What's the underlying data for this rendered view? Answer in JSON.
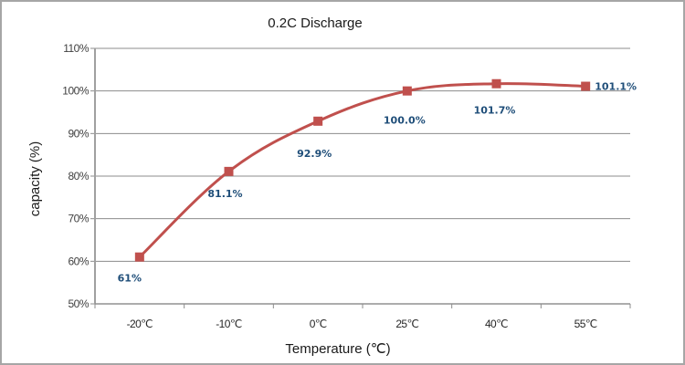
{
  "chart_data": {
    "type": "line",
    "title": "0.2C Discharge",
    "xlabel": "Temperature (℃)",
    "ylabel": "capacity (%)",
    "categories": [
      "-20℃",
      "-10℃",
      "0℃",
      "25℃",
      "40℃",
      "55℃"
    ],
    "series": [
      {
        "name": "capacity",
        "values": [
          61,
          81.1,
          92.9,
          100.0,
          101.7,
          101.1
        ],
        "data_labels": [
          "61%",
          "81.1%",
          "92.9%",
          "100.0%",
          "101.7%",
          "101.1%"
        ],
        "color": "#c0504d",
        "marker": "square"
      }
    ],
    "ylim": [
      50,
      110
    ],
    "yticks": [
      50,
      60,
      70,
      80,
      90,
      100,
      110
    ],
    "ytick_labels": [
      "50%",
      "60%",
      "70%",
      "80%",
      "90%",
      "100%",
      "110%"
    ],
    "grid": true,
    "legend": "none",
    "label_color": "#1f4e79"
  }
}
